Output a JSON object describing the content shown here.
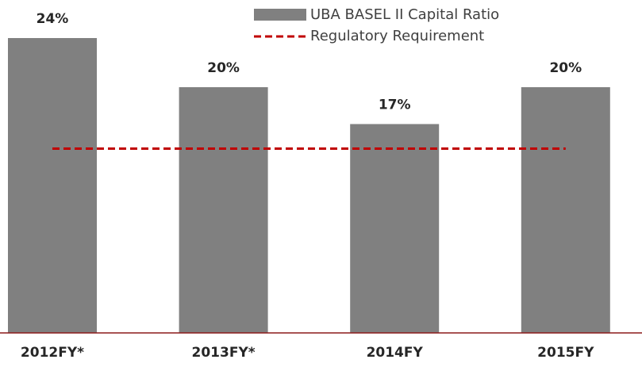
{
  "chart_data": {
    "type": "bar",
    "categories": [
      "2012FY*",
      "2013FY*",
      "2014FY",
      "2015FY"
    ],
    "series": [
      {
        "name": "UBA BASEL II Capital Ratio",
        "color": "#808080",
        "values": [
          24,
          20,
          17,
          20
        ],
        "value_labels": [
          "24%",
          "20%",
          "17%",
          "20%"
        ]
      }
    ],
    "reference_line": {
      "name": "Regulatory Requirement",
      "value": 15,
      "color": "#c00000"
    },
    "ylim": [
      0,
      27
    ]
  }
}
